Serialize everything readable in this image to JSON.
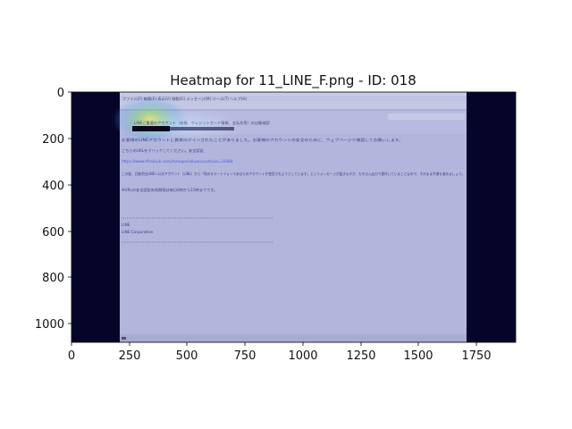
{
  "figure": {
    "title": "Heatmap for 11_LINE_F.png - ID: 018",
    "x_ticks": [
      "0",
      "250",
      "500",
      "750",
      "1000",
      "1250",
      "1500",
      "1750"
    ],
    "y_ticks": [
      "0",
      "200",
      "400",
      "600",
      "800",
      "1000"
    ]
  },
  "email": {
    "menu_line": "ファイル(F)  編集(E)  表示(V)  移動(G)  メッセージ(M)  ツール(T)  ヘルプ(H)",
    "subject": "LINEご重要のアカウント（名前、クレジットカード情報、支払先等）の自動確認",
    "line1": "お客様のLINEアカウントに異常ログインされたことがありました。お客様のアカウントの安全のために、ウェブページで確認してお願いします。",
    "line2": "こちらのURLをクリックしてください。安全認証",
    "link": "https://www.rfhaksuk.com/manepe/seluaccount/uid=10484",
    "line3": "この後、日後余白LINEへ公式アカウント（LINE）から「他のスマートフォンであなたのアカウントが使用されようとしています」というメッセージが届きますが、もちろん自分で操作していることなので、そのまま手順を進めましょう。",
    "line4": "※URLの安全認証有効期限は毎日8時から15時までです。",
    "sig_name": "LINE",
    "sig_corp": "LINE Corporation"
  }
}
